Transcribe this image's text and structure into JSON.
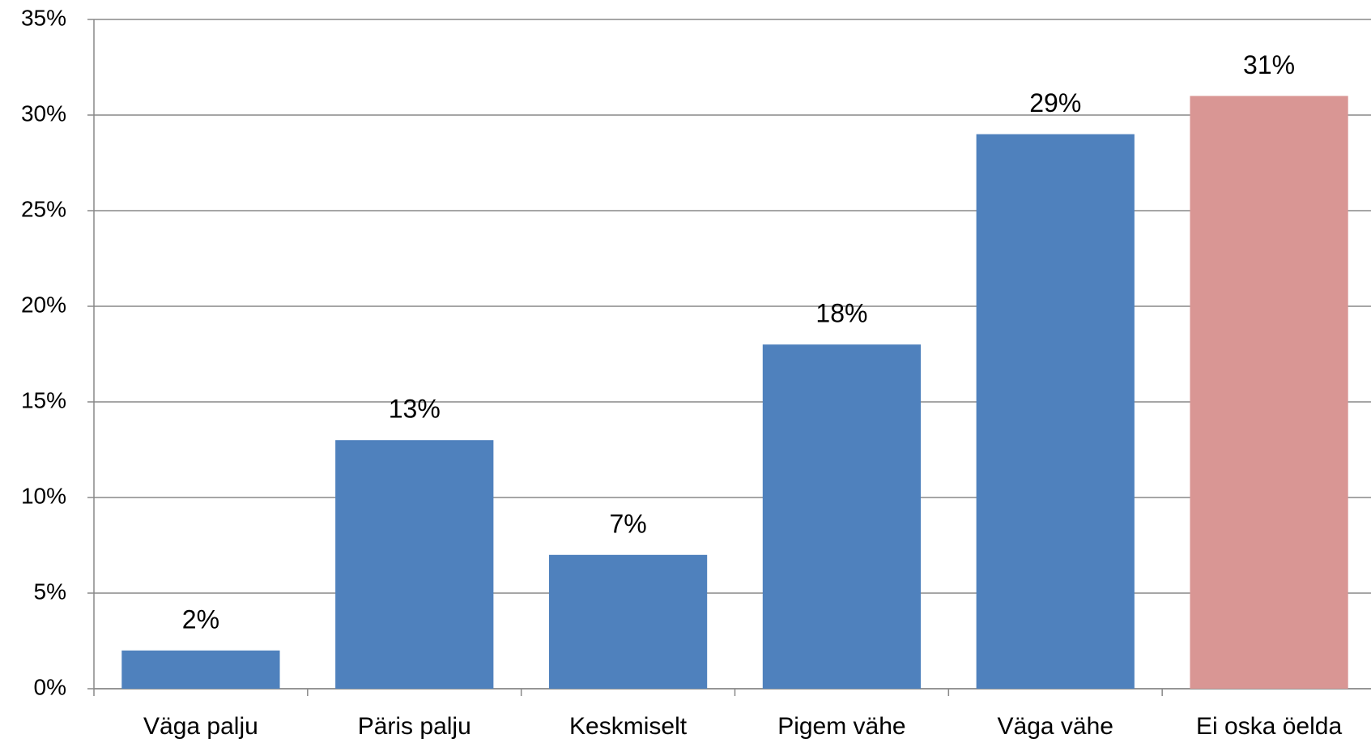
{
  "chart_data": {
    "type": "bar",
    "categories": [
      "Väga palju",
      "Päris palju",
      "Keskmiselt",
      "Pigem vähe",
      "Väga vähe",
      "Ei oska öelda"
    ],
    "values": [
      2,
      13,
      7,
      18,
      29,
      31
    ],
    "value_labels": [
      "2%",
      "13%",
      "7%",
      "18%",
      "29%",
      "31%"
    ],
    "colors": [
      "#4f81bd",
      "#4f81bd",
      "#4f81bd",
      "#4f81bd",
      "#4f81bd",
      "#d99694"
    ],
    "ylim": [
      0,
      35
    ],
    "yticks": [
      {
        "value": 0,
        "label": "0%"
      },
      {
        "value": 5,
        "label": "5%"
      },
      {
        "value": 10,
        "label": "10%"
      },
      {
        "value": 15,
        "label": "15%"
      },
      {
        "value": 20,
        "label": "20%"
      },
      {
        "value": 25,
        "label": "25%"
      },
      {
        "value": 30,
        "label": "30%"
      },
      {
        "value": 35,
        "label": "35%"
      }
    ],
    "grid": true
  }
}
